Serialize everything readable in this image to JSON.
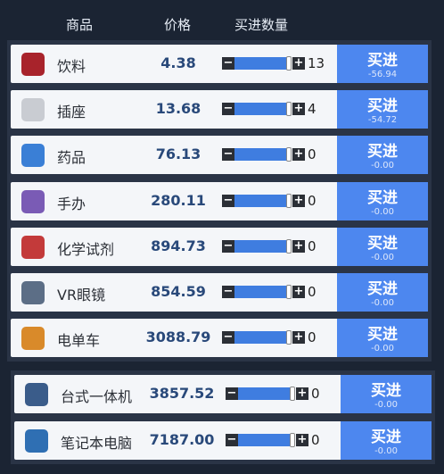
{
  "header": {
    "name": "商品",
    "price": "价格",
    "qty": "买进数量"
  },
  "groups": [
    {
      "items": [
        {
          "name": "饮料",
          "price": "4.38",
          "qty": "13",
          "button": "买进",
          "cost": "-56.94"
        },
        {
          "name": "插座",
          "price": "13.68",
          "qty": "4",
          "button": "买进",
          "cost": "-54.72"
        },
        {
          "name": "药品",
          "price": "76.13",
          "qty": "0",
          "button": "买进",
          "cost": "-0.00"
        },
        {
          "name": "手办",
          "price": "280.11",
          "qty": "0",
          "button": "买进",
          "cost": "-0.00"
        },
        {
          "name": "化学试剂",
          "price": "894.73",
          "qty": "0",
          "button": "买进",
          "cost": "-0.00"
        },
        {
          "name": "VR眼镜",
          "price": "854.59",
          "qty": "0",
          "button": "买进",
          "cost": "-0.00"
        },
        {
          "name": "电单车",
          "price": "3088.79",
          "qty": "0",
          "button": "买进",
          "cost": "-0.00"
        }
      ]
    },
    {
      "items": [
        {
          "name": "台式一体机",
          "price": "3857.52",
          "qty": "0",
          "button": "买进",
          "cost": "-0.00"
        },
        {
          "name": "笔记本电脑",
          "price": "7187.00",
          "qty": "0",
          "button": "买进",
          "cost": "-0.00"
        }
      ]
    }
  ]
}
